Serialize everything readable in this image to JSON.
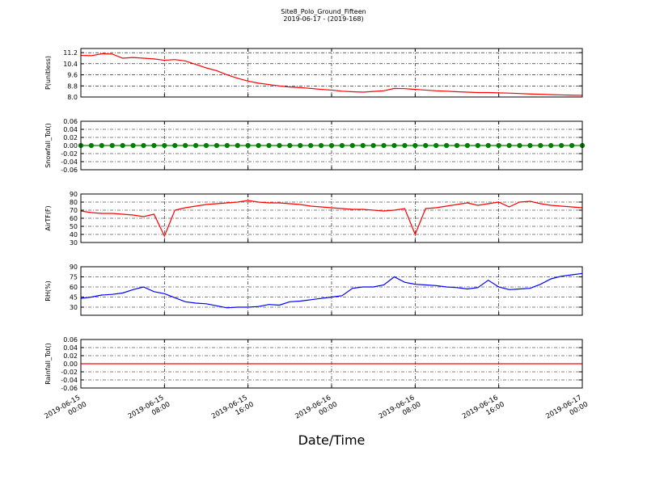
{
  "chart_data": {
    "type": "line",
    "title": "Site8_Polo_Ground_Fifteen",
    "subtitle": "2019-06-17 - (2019-168)",
    "x_label": "Date/Time",
    "grid": true,
    "x": [
      "2019-06-15 00:00",
      "2019-06-15 01:00",
      "2019-06-15 02:00",
      "2019-06-15 03:00",
      "2019-06-15 04:00",
      "2019-06-15 05:00",
      "2019-06-15 06:00",
      "2019-06-15 07:00",
      "2019-06-15 08:00",
      "2019-06-15 09:00",
      "2019-06-15 10:00",
      "2019-06-15 11:00",
      "2019-06-15 12:00",
      "2019-06-15 13:00",
      "2019-06-15 14:00",
      "2019-06-15 15:00",
      "2019-06-15 16:00",
      "2019-06-15 17:00",
      "2019-06-15 18:00",
      "2019-06-15 19:00",
      "2019-06-15 20:00",
      "2019-06-15 21:00",
      "2019-06-15 22:00",
      "2019-06-15 23:00",
      "2019-06-16 00:00",
      "2019-06-16 01:00",
      "2019-06-16 02:00",
      "2019-06-16 03:00",
      "2019-06-16 04:00",
      "2019-06-16 05:00",
      "2019-06-16 06:00",
      "2019-06-16 07:00",
      "2019-06-16 08:00",
      "2019-06-16 09:00",
      "2019-06-16 10:00",
      "2019-06-16 11:00",
      "2019-06-16 12:00",
      "2019-06-16 13:00",
      "2019-06-16 14:00",
      "2019-06-16 15:00",
      "2019-06-16 16:00",
      "2019-06-16 17:00",
      "2019-06-16 18:00",
      "2019-06-16 19:00",
      "2019-06-16 20:00",
      "2019-06-16 21:00",
      "2019-06-16 22:00",
      "2019-06-16 23:00",
      "2019-06-17 00:00"
    ],
    "xlim": [
      "2019-06-15 00:00",
      "2019-06-17 00:00"
    ],
    "xticks": [
      "2019-06-15 00:00",
      "2019-06-15 08:00",
      "2019-06-15 16:00",
      "2019-06-16 00:00",
      "2019-06-16 08:00",
      "2019-06-16 16:00",
      "2019-06-17 00:00"
    ],
    "panels": [
      {
        "y_label": "P(unitless)",
        "ylim": [
          8.0,
          11.5
        ],
        "yticks": [
          {
            "value": 8,
            "label": "8.0"
          },
          8.8,
          9.6,
          10.4,
          11.2
        ],
        "series": [
          {
            "color": "#ff0000",
            "values": [
              11.0,
              10.98,
              11.12,
              11.1,
              10.8,
              10.85,
              10.8,
              10.75,
              10.65,
              10.7,
              10.6,
              10.35,
              10.1,
              9.9,
              9.6,
              9.35,
              9.15,
              9.0,
              8.9,
              8.8,
              8.72,
              8.68,
              8.62,
              8.55,
              8.5,
              8.42,
              8.38,
              8.35,
              8.4,
              8.45,
              8.62,
              8.6,
              8.55,
              8.5,
              8.45,
              8.42,
              8.38,
              8.35,
              8.32,
              8.32,
              8.3,
              8.28,
              8.25,
              8.22,
              8.2,
              8.17,
              8.15,
              8.13,
              8.12
            ]
          }
        ]
      },
      {
        "y_label": "Snowfall_Tot()",
        "ylim": [
          -0.06,
          0.06
        ],
        "yticks": [
          -0.06,
          -0.04,
          -0.02,
          {
            "value": 0,
            "label": "0.00"
          },
          0.02,
          0.04,
          0.06
        ],
        "series": [
          {
            "color": "#008000",
            "marker": "o",
            "values": [
              0,
              0,
              0,
              0,
              0,
              0,
              0,
              0,
              0,
              0,
              0,
              0,
              0,
              0,
              0,
              0,
              0,
              0,
              0,
              0,
              0,
              0,
              0,
              0,
              0,
              0,
              0,
              0,
              0,
              0,
              0,
              0,
              0,
              0,
              0,
              0,
              0,
              0,
              0,
              0,
              0,
              0,
              0,
              0,
              0,
              0,
              0,
              0,
              0
            ]
          }
        ]
      },
      {
        "y_label": "AirTF(F)",
        "ylim": [
          30,
          90
        ],
        "yticks": [
          30,
          40,
          50,
          60,
          70,
          80,
          90
        ],
        "series": [
          {
            "color": "#ff0000",
            "values": [
              69,
              67,
              66,
              66,
              65,
              64,
              62,
              65,
              38,
              70,
              73,
              75,
              77,
              78,
              79,
              80,
              82,
              80,
              79,
              79,
              78,
              77,
              75,
              74,
              73,
              72,
              71,
              71,
              70,
              69,
              70,
              72,
              40,
              72,
              73,
              75,
              77,
              79,
              76,
              78,
              80,
              74,
              80,
              81,
              78,
              76,
              75,
              74,
              73
            ]
          }
        ]
      },
      {
        "y_label": "RH(%)",
        "ylim": [
          18,
          90
        ],
        "yticks": [
          30,
          45,
          60,
          75,
          90
        ],
        "series": [
          {
            "color": "#0000ff",
            "values": [
              43,
              45,
              48,
              49,
              51,
              56,
              60,
              53,
              50,
              44,
              38,
              36,
              35,
              32,
              29,
              30,
              30,
              31,
              34,
              33,
              38,
              39,
              41,
              43,
              45,
              47,
              58,
              60,
              60,
              63,
              75,
              67,
              64,
              63,
              62,
              60,
              59,
              57,
              59,
              70,
              60,
              56,
              57,
              58,
              64,
              72,
              76,
              78,
              80
            ]
          }
        ]
      },
      {
        "y_label": "Rainfall_Tot()",
        "ylim": [
          -0.06,
          0.06
        ],
        "yticks": [
          -0.06,
          -0.04,
          -0.02,
          {
            "value": 0,
            "label": "0.00"
          },
          0.02,
          0.04,
          0.06
        ],
        "series": [
          {
            "color": "#ff0000",
            "values": [
              0,
              0,
              0,
              0,
              0,
              0,
              0,
              0,
              0,
              0,
              0,
              0,
              0,
              0,
              0,
              0,
              0,
              0,
              0,
              0,
              0,
              0,
              0,
              0,
              0,
              0,
              0,
              0,
              0,
              0,
              0,
              0,
              0,
              0,
              0,
              0,
              0,
              0,
              0,
              0,
              0,
              0,
              0,
              0,
              0,
              0,
              0,
              0,
              0
            ]
          }
        ]
      }
    ]
  }
}
